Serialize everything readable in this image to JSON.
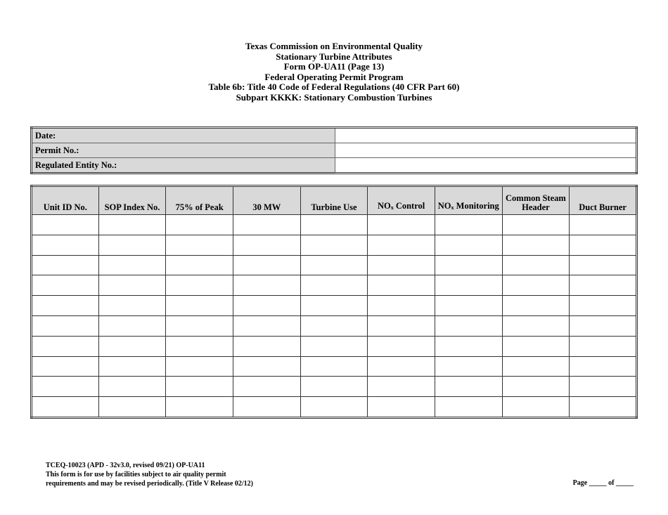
{
  "title_lines": [
    "Texas Commission on Environmental Quality",
    "Stationary Turbine Attributes",
    "Form OP-UA11 (Page 13)",
    "Federal Operating Permit Program",
    "Table 6b:  Title 40 Code of Federal Regulations (40 CFR Part 60)",
    "Subpart KKKK:  Stationary Combustion Turbines"
  ],
  "info": {
    "date_label": "Date:",
    "permit_label": "Permit No.:",
    "entity_label": "Regulated Entity No.:"
  },
  "columns": [
    {
      "label": "Unit ID No."
    },
    {
      "label": "SOP Index No."
    },
    {
      "label": "75% of Peak"
    },
    {
      "label": "30 MW"
    },
    {
      "label": "Turbine Use"
    },
    {
      "label": "NO",
      "sub": "x",
      "rest": " Control"
    },
    {
      "label": "NO",
      "sub": "x",
      "rest": " Monitoring"
    },
    {
      "label": "Common Steam Header"
    },
    {
      "label": "Duct Burner"
    }
  ],
  "row_count": 10,
  "footer": {
    "line1": "TCEQ-10023 (APD - 32v3.0, revised 09/21) OP-UA11",
    "line2": "This form is for use by facilities subject to air quality permit",
    "line3": "requirements and may be revised periodically. (Title V Release 02/12)",
    "page": "Page _____ of _____"
  }
}
